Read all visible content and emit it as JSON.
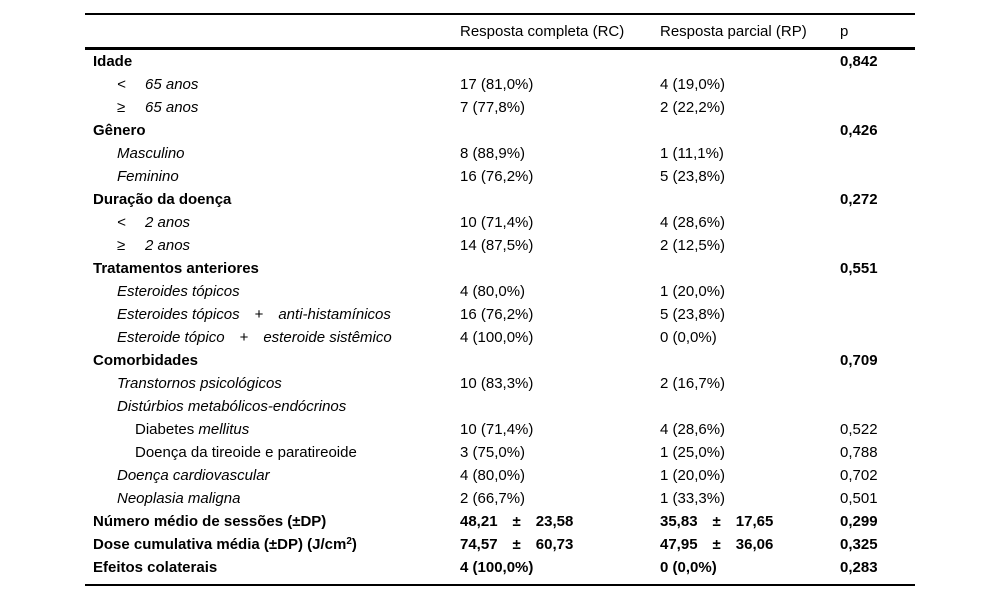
{
  "table": {
    "header": {
      "label": "",
      "rc": "Resposta completa (RC)",
      "rp": "Resposta parcial (RP)",
      "p": "p"
    },
    "rows": [
      {
        "indent": 0,
        "bold": true,
        "label": "Idade",
        "rc": "",
        "rp": "",
        "p": "0,842"
      },
      {
        "indent": 1,
        "italic": true,
        "symbol": "<",
        "label": "65 anos",
        "rc": "17 (81,0%)",
        "rp": "4 (19,0%)",
        "p": ""
      },
      {
        "indent": 1,
        "italic": true,
        "symbol": "≥",
        "label": "65 anos",
        "rc": "7 (77,8%)",
        "rp": "2 (22,2%)",
        "p": ""
      },
      {
        "indent": 0,
        "bold": true,
        "label": "Gênero",
        "rc": "",
        "rp": "",
        "p": "0,426"
      },
      {
        "indent": 1,
        "italic": true,
        "label": "Masculino",
        "rc": "8 (88,9%)",
        "rp": "1 (11,1%)",
        "p": ""
      },
      {
        "indent": 1,
        "italic": true,
        "label": "Feminino",
        "rc": "16 (76,2%)",
        "rp": "5 (23,8%)",
        "p": ""
      },
      {
        "indent": 0,
        "bold": true,
        "label": "Duração da doença",
        "rc": "",
        "rp": "",
        "p": "0,272"
      },
      {
        "indent": 1,
        "italic": true,
        "symbol": "<",
        "label": "2 anos",
        "rc": "10 (71,4%)",
        "rp": "4 (28,6%)",
        "p": ""
      },
      {
        "indent": 1,
        "italic": true,
        "symbol": "≥",
        "label": "2 anos",
        "rc": "14 (87,5%)",
        "rp": "2 (12,5%)",
        "p": ""
      },
      {
        "indent": 0,
        "bold": true,
        "label": "Tratamentos anteriores",
        "rc": "",
        "rp": "",
        "p": "0,551"
      },
      {
        "indent": 1,
        "italic": true,
        "label": "Esteroides tópicos",
        "rc": "4 (80,0%)",
        "rp": "1 (20,0%)",
        "p": ""
      },
      {
        "indent": 1,
        "label": [
          {
            "t": "Esteroides tópicos",
            "i": true
          },
          {
            "t": "+",
            "gap": true
          },
          {
            "t": "anti-histamínicos",
            "i": true
          }
        ],
        "rc": "16 (76,2%)",
        "rp": "5 (23,8%)",
        "p": ""
      },
      {
        "indent": 1,
        "label": [
          {
            "t": "Esteroide tópico",
            "i": true
          },
          {
            "t": "+",
            "gap": true
          },
          {
            "t": "esteroide sistêmico",
            "i": true
          }
        ],
        "rc": "4 (100,0%)",
        "rp": "0 (0,0%)",
        "p": ""
      },
      {
        "indent": 0,
        "bold": true,
        "label": "Comorbidades",
        "rc": "",
        "rp": "",
        "p": "0,709"
      },
      {
        "indent": 1,
        "italic": true,
        "label": "Transtornos psicológicos",
        "rc": "10 (83,3%)",
        "rp": "2 (16,7%)",
        "p": ""
      },
      {
        "indent": 1,
        "italic": true,
        "label": "Distúrbios metabólicos-endócrinos",
        "rc": "",
        "rp": "",
        "p": ""
      },
      {
        "indent": 2,
        "label": [
          {
            "t": "Diabetes "
          },
          {
            "t": "mellitus",
            "i": true
          }
        ],
        "rc": "10 (71,4%)",
        "rp": "4 (28,6%)",
        "p": "0,522"
      },
      {
        "indent": 2,
        "label": "Doença da tireoide e paratireoide",
        "rc": "3 (75,0%)",
        "rp": "1 (25,0%)",
        "p": "0,788"
      },
      {
        "indent": 1,
        "italic": true,
        "label": "Doença cardiovascular",
        "rc": "4 (80,0%)",
        "rp": "1 (20,0%)",
        "p": "0,702"
      },
      {
        "indent": 1,
        "italic": true,
        "label": "Neoplasia maligna",
        "rc": "2 (66,7%)",
        "rp": "1 (33,3%)",
        "p": "0,501"
      },
      {
        "indent": 0,
        "bold": true,
        "label": "Número médio de sessões (±DP)",
        "rc": [
          {
            "t": "48,21"
          },
          {
            "t": "±",
            "gap": true
          },
          {
            "t": "23,58"
          }
        ],
        "rp": [
          {
            "t": "35,83"
          },
          {
            "t": "±",
            "gap": true
          },
          {
            "t": "17,65"
          }
        ],
        "p": "0,299"
      },
      {
        "indent": 0,
        "bold": true,
        "label": [
          {
            "t": "Dose cumulativa média (±DP) (J/cm"
          },
          {
            "t": "2",
            "sup": true
          },
          {
            "t": ")"
          }
        ],
        "rc": [
          {
            "t": "74,57"
          },
          {
            "t": "±",
            "gap": true
          },
          {
            "t": "60,73"
          }
        ],
        "rp": [
          {
            "t": "47,95"
          },
          {
            "t": "±",
            "gap": true
          },
          {
            "t": "36,06"
          }
        ],
        "p": "0,325"
      },
      {
        "indent": 0,
        "bold": true,
        "label": "Efeitos colaterais",
        "rc": "4 (100,0%)",
        "rp": "0 (0,0%)",
        "p": "0,283"
      }
    ]
  }
}
